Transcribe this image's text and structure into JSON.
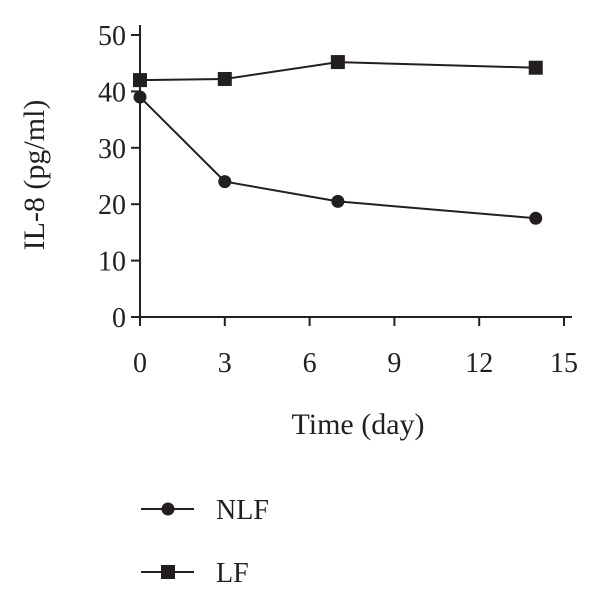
{
  "chart_data": {
    "type": "line",
    "title": "",
    "xlabel": "Time (day)",
    "ylabel": "IL-8 (pg/ml)",
    "xlim": [
      0,
      15
    ],
    "ylim": [
      0,
      50
    ],
    "xticks": [
      0,
      3,
      6,
      9,
      12,
      15
    ],
    "xtick_labels": [
      "0",
      "3",
      "6",
      "9",
      "12",
      "15"
    ],
    "yticks": [
      0,
      10,
      20,
      30,
      40,
      50
    ],
    "ytick_labels": [
      "0",
      "10",
      "20",
      "30",
      "40",
      "50"
    ],
    "grid": false,
    "legend_position": "bottom-left",
    "series": [
      {
        "name": "NLF",
        "marker": "circle",
        "color": "#231f20",
        "x": [
          0,
          3,
          7,
          14
        ],
        "y": [
          39,
          24,
          20.5,
          17.5
        ]
      },
      {
        "name": "LF",
        "marker": "square",
        "color": "#231f20",
        "x": [
          0,
          3,
          7,
          14
        ],
        "y": [
          42,
          42.2,
          45.2,
          44.2
        ]
      }
    ]
  }
}
